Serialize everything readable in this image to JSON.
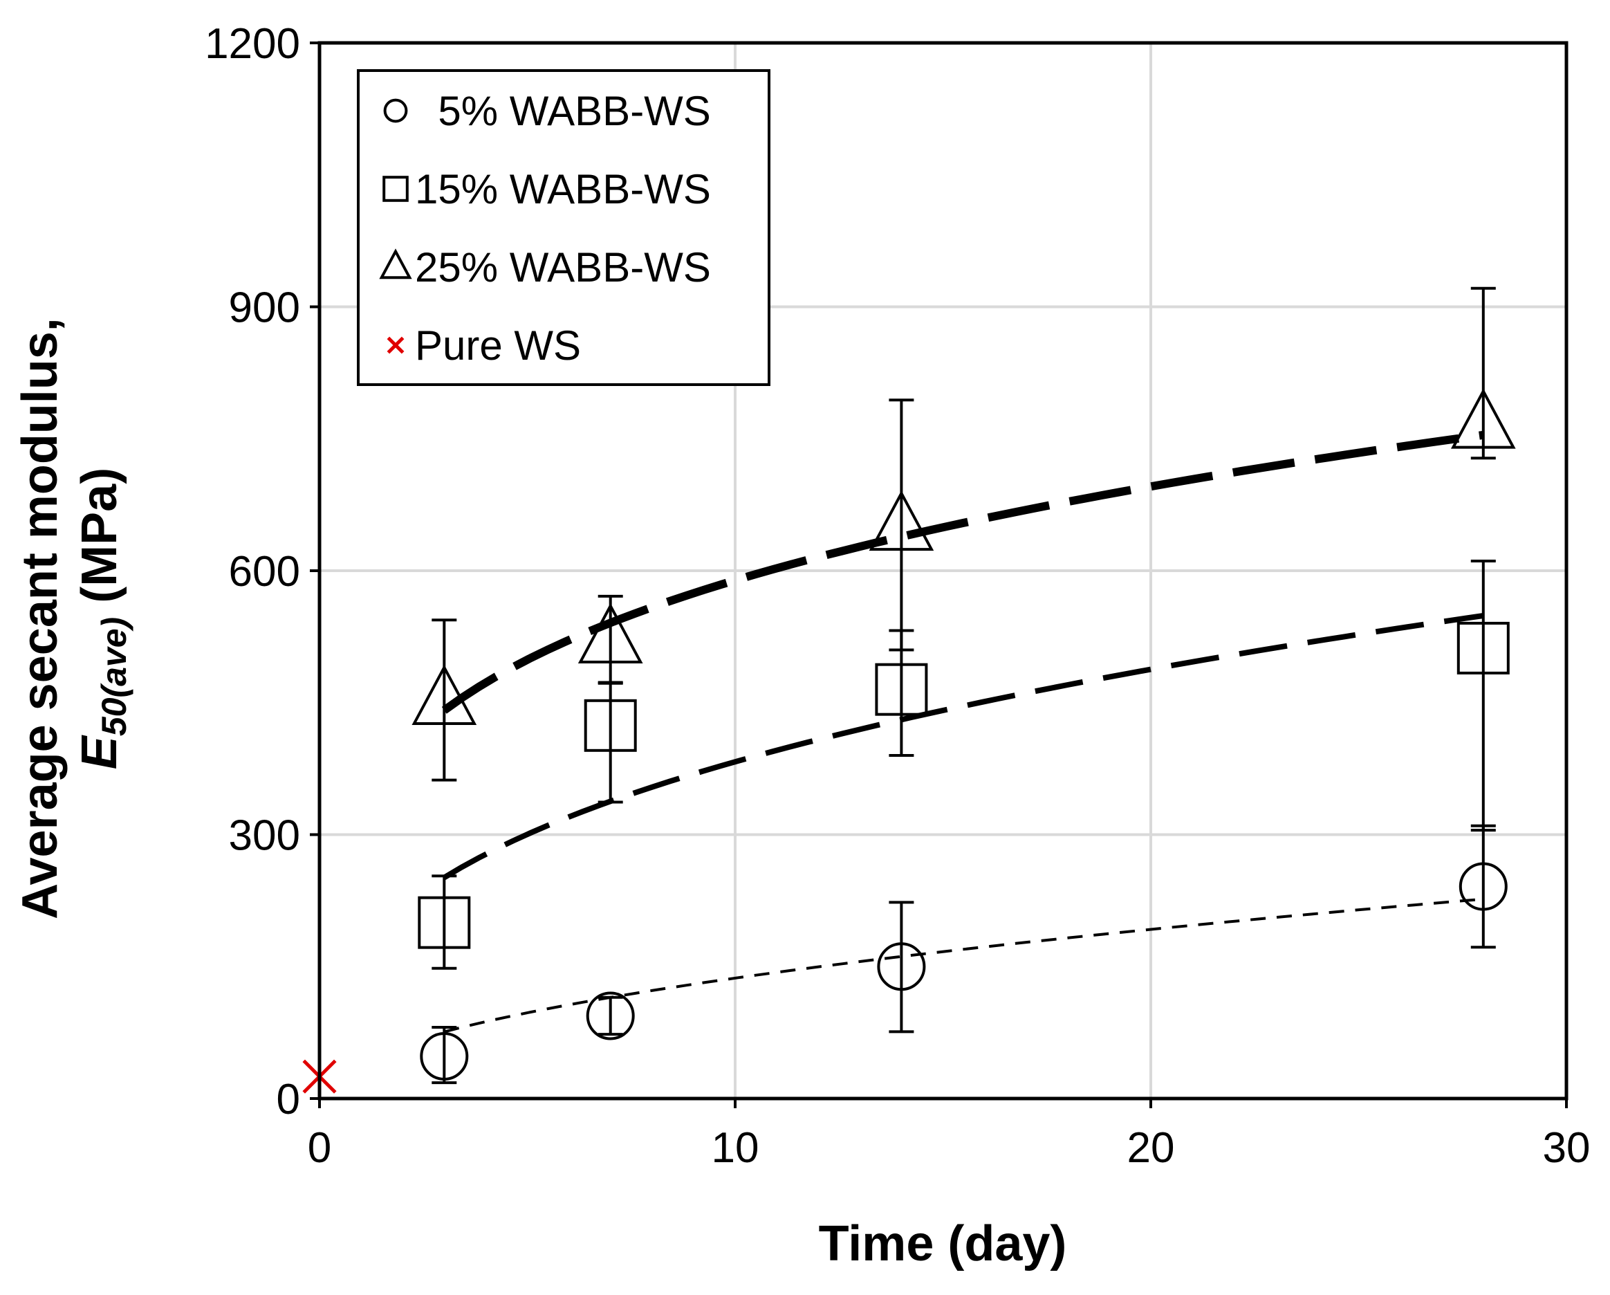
{
  "chart_data": {
    "type": "scatter",
    "title": "",
    "xlabel": "Time (day)",
    "ylabel_line1": "Average secant modulus,",
    "ylabel_line2_symbol": "E",
    "ylabel_line2_subscript": "50(ave)",
    "ylabel_line2_unit": " (MPa)",
    "xlim": [
      0,
      30
    ],
    "ylim": [
      0,
      1200
    ],
    "x_ticks": [
      0,
      10,
      20,
      30
    ],
    "x_tick_labels": [
      "0",
      "10",
      "20",
      "30"
    ],
    "y_ticks": [
      0,
      300,
      600,
      900,
      1200
    ],
    "y_tick_labels": [
      "0",
      "300",
      "600",
      "900",
      "1200"
    ],
    "grid": true,
    "legend_position": "top-left",
    "colors": {
      "pure_ws": "#e00000",
      "series": "#000000",
      "grid": "#d9d9d9"
    },
    "series": [
      {
        "name": "5% WABB-WS",
        "legend_label": "  5% WABB-WS",
        "marker": "circle",
        "x": [
          3,
          7,
          14,
          28
        ],
        "y": [
          48,
          94,
          150,
          241
        ],
        "err_low": [
          18,
          73,
          76,
          172
        ],
        "err_high": [
          81,
          115,
          223,
          310
        ],
        "trend": {
          "x_start": 3,
          "x_end": 28,
          "a": 44.3,
          "b": 0.49,
          "style": "thin"
        }
      },
      {
        "name": "15% WABB-WS",
        "legend_label": "15% WABB-WS",
        "marker": "square",
        "x": [
          3,
          7,
          14,
          28
        ],
        "y": [
          200,
          424,
          465,
          512
        ],
        "err_low": [
          148,
          337,
          390,
          305
        ],
        "err_high": [
          253,
          472,
          532,
          611
        ],
        "trend": {
          "x_start": 3,
          "x_end": 28,
          "a": 171,
          "b": 0.35,
          "style": "medium"
        }
      },
      {
        "name": "25% WABB-WS",
        "legend_label": "25% WABB-WS",
        "marker": "triangle",
        "x": [
          3,
          7,
          14,
          28
        ],
        "y": [
          452,
          522,
          650,
          766
        ],
        "err_low": [
          362,
          473,
          510,
          728
        ],
        "err_high": [
          544,
          571,
          794,
          921
        ],
        "trend": {
          "x_start": 3,
          "x_end": 28,
          "a": 339,
          "b": 0.24,
          "style": "thick"
        }
      },
      {
        "name": "Pure WS",
        "legend_label": "Pure WS",
        "marker": "x",
        "x": [
          0
        ],
        "y": [
          25
        ]
      }
    ]
  }
}
